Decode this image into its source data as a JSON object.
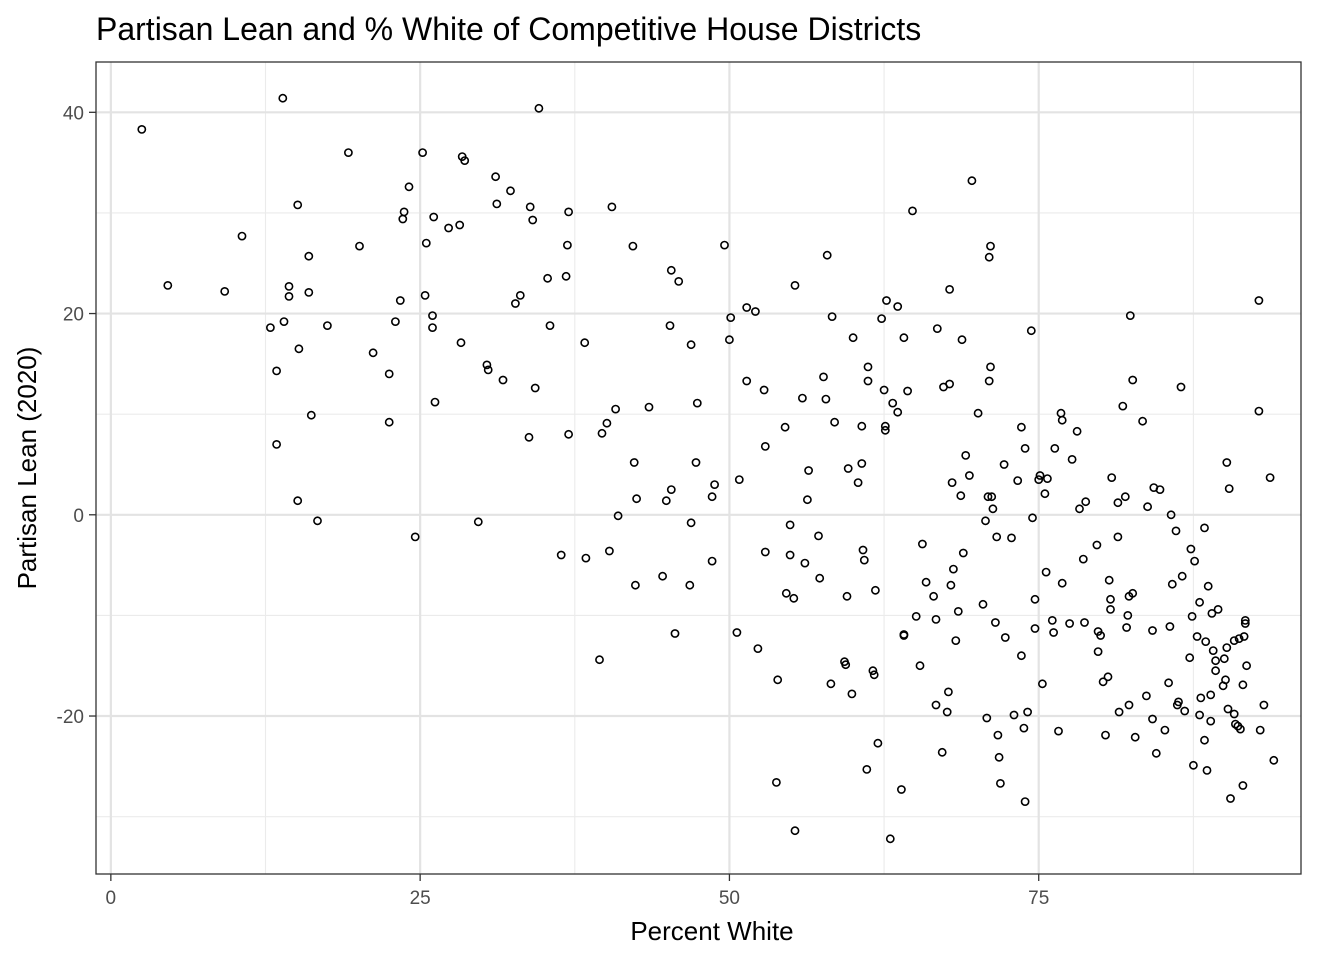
{
  "chart_data": {
    "type": "scatter",
    "title": "Partisan Lean and % White of Competitive House Districts",
    "xlabel": "Percent White",
    "ylabel": "Partisan Lean (2020)",
    "xlim": [
      -1.2,
      96.2
    ],
    "ylim": [
      -35.7,
      45.0
    ],
    "xticks": [
      0,
      25,
      50,
      75
    ],
    "xtick_labels": [
      "0",
      "25",
      "50",
      "75"
    ],
    "yticks": [
      -20,
      0,
      20,
      40
    ],
    "ytick_labels": [
      "-20",
      "0",
      "20",
      "40"
    ],
    "x_minor": [
      12.5,
      37.5,
      62.5,
      87.5
    ],
    "y_minor": [
      -30,
      -10,
      10,
      30
    ],
    "grid": true,
    "theme": "bw",
    "marker_color": "#000000",
    "points": [
      [
        2.5,
        38.3
      ],
      [
        4.6,
        22.8
      ],
      [
        9.2,
        22.2
      ],
      [
        10.6,
        27.7
      ],
      [
        13.9,
        41.4
      ],
      [
        15.1,
        30.8
      ],
      [
        14.4,
        22.7
      ],
      [
        14.4,
        21.7
      ],
      [
        16.0,
        25.7
      ],
      [
        16.0,
        22.1
      ],
      [
        12.9,
        18.6
      ],
      [
        14.0,
        19.2
      ],
      [
        13.4,
        14.3
      ],
      [
        15.2,
        16.5
      ],
      [
        13.4,
        7.0
      ],
      [
        16.2,
        9.9
      ],
      [
        15.1,
        1.4
      ],
      [
        16.7,
        -0.6
      ],
      [
        17.5,
        18.8
      ],
      [
        19.2,
        36.0
      ],
      [
        20.1,
        26.7
      ],
      [
        21.2,
        16.1
      ],
      [
        22.5,
        14.0
      ],
      [
        22.5,
        9.2
      ],
      [
        23.0,
        19.2
      ],
      [
        23.4,
        21.3
      ],
      [
        23.6,
        29.4
      ],
      [
        23.7,
        30.1
      ],
      [
        24.1,
        32.6
      ],
      [
        24.6,
        -2.2
      ],
      [
        25.2,
        36.0
      ],
      [
        25.4,
        21.8
      ],
      [
        25.5,
        27.0
      ],
      [
        26.0,
        19.8
      ],
      [
        26.0,
        18.6
      ],
      [
        26.1,
        29.6
      ],
      [
        26.2,
        11.2
      ],
      [
        27.3,
        28.5
      ],
      [
        28.2,
        28.8
      ],
      [
        28.3,
        17.1
      ],
      [
        28.4,
        35.6
      ],
      [
        28.6,
        35.2
      ],
      [
        29.7,
        -0.7
      ],
      [
        30.4,
        14.9
      ],
      [
        30.5,
        14.4
      ],
      [
        31.1,
        33.6
      ],
      [
        31.2,
        30.9
      ],
      [
        31.7,
        13.4
      ],
      [
        32.3,
        32.2
      ],
      [
        32.7,
        21.0
      ],
      [
        33.1,
        21.8
      ],
      [
        33.8,
        7.7
      ],
      [
        33.9,
        30.6
      ],
      [
        34.1,
        29.3
      ],
      [
        34.3,
        12.6
      ],
      [
        34.6,
        40.4
      ],
      [
        35.3,
        23.5
      ],
      [
        35.5,
        18.8
      ],
      [
        36.4,
        -4.0
      ],
      [
        36.8,
        23.7
      ],
      [
        36.9,
        26.8
      ],
      [
        37.0,
        8.0
      ],
      [
        37.0,
        30.1
      ],
      [
        38.3,
        17.1
      ],
      [
        38.4,
        -4.3
      ],
      [
        39.5,
        -14.4
      ],
      [
        39.7,
        8.1
      ],
      [
        40.1,
        9.1
      ],
      [
        40.3,
        -3.6
      ],
      [
        40.5,
        30.6
      ],
      [
        40.8,
        10.5
      ],
      [
        41.0,
        -0.1
      ],
      [
        42.2,
        26.7
      ],
      [
        42.3,
        5.2
      ],
      [
        42.5,
        1.6
      ],
      [
        42.4,
        -7.0
      ],
      [
        43.5,
        10.7
      ],
      [
        44.6,
        -6.1
      ],
      [
        44.9,
        1.4
      ],
      [
        45.2,
        18.8
      ],
      [
        45.3,
        24.3
      ],
      [
        45.3,
        2.5
      ],
      [
        45.6,
        -11.8
      ],
      [
        45.9,
        23.2
      ],
      [
        46.8,
        -7.0
      ],
      [
        46.9,
        16.9
      ],
      [
        46.9,
        -0.8
      ],
      [
        47.3,
        5.2
      ],
      [
        47.4,
        11.1
      ],
      [
        48.6,
        -4.6
      ],
      [
        48.6,
        1.8
      ],
      [
        48.8,
        3.0
      ],
      [
        49.6,
        26.8
      ],
      [
        50.0,
        17.4
      ],
      [
        50.1,
        19.6
      ],
      [
        50.6,
        -11.7
      ],
      [
        50.8,
        3.5
      ],
      [
        51.4,
        20.6
      ],
      [
        51.4,
        13.3
      ],
      [
        52.1,
        20.2
      ],
      [
        52.3,
        -13.3
      ],
      [
        52.8,
        12.4
      ],
      [
        52.9,
        6.8
      ],
      [
        52.9,
        -3.7
      ],
      [
        53.8,
        -26.6
      ],
      [
        53.9,
        -16.4
      ],
      [
        54.5,
        8.7
      ],
      [
        54.6,
        -7.8
      ],
      [
        54.9,
        -1.0
      ],
      [
        54.9,
        -4.0
      ],
      [
        55.2,
        -8.3
      ],
      [
        55.3,
        22.8
      ],
      [
        55.3,
        -31.4
      ],
      [
        55.9,
        11.6
      ],
      [
        56.1,
        -4.8
      ],
      [
        56.3,
        1.5
      ],
      [
        56.4,
        4.4
      ],
      [
        57.2,
        -2.1
      ],
      [
        57.3,
        -6.3
      ],
      [
        57.6,
        13.7
      ],
      [
        57.8,
        11.5
      ],
      [
        57.9,
        25.8
      ],
      [
        58.2,
        -16.8
      ],
      [
        58.3,
        19.7
      ],
      [
        58.5,
        9.2
      ],
      [
        59.3,
        -14.6
      ],
      [
        59.4,
        -14.9
      ],
      [
        59.5,
        -8.1
      ],
      [
        59.6,
        4.6
      ],
      [
        59.9,
        -17.8
      ],
      [
        60.0,
        17.6
      ],
      [
        60.4,
        3.2
      ],
      [
        60.7,
        8.8
      ],
      [
        60.7,
        5.1
      ],
      [
        60.8,
        -3.5
      ],
      [
        60.9,
        -4.5
      ],
      [
        61.1,
        -25.3
      ],
      [
        61.2,
        14.7
      ],
      [
        61.2,
        13.3
      ],
      [
        61.6,
        -15.5
      ],
      [
        61.7,
        -15.9
      ],
      [
        61.8,
        -7.5
      ],
      [
        62.0,
        -22.7
      ],
      [
        62.3,
        19.5
      ],
      [
        62.5,
        12.4
      ],
      [
        62.6,
        8.8
      ],
      [
        62.6,
        8.4
      ],
      [
        62.7,
        21.3
      ],
      [
        63.0,
        -32.2
      ],
      [
        63.2,
        11.1
      ],
      [
        63.6,
        20.7
      ],
      [
        63.6,
        10.2
      ],
      [
        63.9,
        -27.3
      ],
      [
        64.1,
        -11.9
      ],
      [
        64.1,
        -12.0
      ],
      [
        64.1,
        17.6
      ],
      [
        64.4,
        12.3
      ],
      [
        64.8,
        30.2
      ],
      [
        65.1,
        -10.1
      ],
      [
        65.4,
        -15.0
      ],
      [
        65.6,
        -2.9
      ],
      [
        65.9,
        -6.7
      ],
      [
        66.5,
        -8.1
      ],
      [
        66.7,
        -10.4
      ],
      [
        66.7,
        -18.9
      ],
      [
        66.8,
        18.5
      ],
      [
        67.2,
        -23.6
      ],
      [
        67.3,
        12.7
      ],
      [
        67.6,
        -19.6
      ],
      [
        67.7,
        -17.6
      ],
      [
        67.8,
        13.0
      ],
      [
        67.8,
        22.4
      ],
      [
        67.9,
        -7.0
      ],
      [
        68.0,
        3.2
      ],
      [
        68.1,
        -5.4
      ],
      [
        68.3,
        -12.5
      ],
      [
        68.5,
        -9.6
      ],
      [
        68.7,
        1.9
      ],
      [
        68.8,
        17.4
      ],
      [
        68.9,
        -3.8
      ],
      [
        69.1,
        5.9
      ],
      [
        69.4,
        3.9
      ],
      [
        69.6,
        33.2
      ],
      [
        70.1,
        10.1
      ],
      [
        70.5,
        -8.9
      ],
      [
        70.7,
        -0.6
      ],
      [
        70.8,
        -20.2
      ],
      [
        70.9,
        1.8
      ],
      [
        71.0,
        13.3
      ],
      [
        71.0,
        25.6
      ],
      [
        71.1,
        14.7
      ],
      [
        71.1,
        26.7
      ],
      [
        71.2,
        1.8
      ],
      [
        71.3,
        0.6
      ],
      [
        71.5,
        -10.7
      ],
      [
        71.6,
        -2.2
      ],
      [
        71.7,
        -21.9
      ],
      [
        71.8,
        -24.1
      ],
      [
        71.9,
        -26.7
      ],
      [
        72.2,
        5.0
      ],
      [
        72.3,
        -12.2
      ],
      [
        72.8,
        -2.3
      ],
      [
        73.0,
        -19.9
      ],
      [
        73.3,
        3.4
      ],
      [
        73.6,
        8.7
      ],
      [
        73.6,
        -14.0
      ],
      [
        73.8,
        -21.2
      ],
      [
        73.9,
        -28.5
      ],
      [
        73.9,
        6.6
      ],
      [
        74.1,
        -19.6
      ],
      [
        74.4,
        18.3
      ],
      [
        74.5,
        -0.3
      ],
      [
        74.7,
        -11.3
      ],
      [
        74.7,
        -8.4
      ],
      [
        75.0,
        3.5
      ],
      [
        75.1,
        3.9
      ],
      [
        75.3,
        -16.8
      ],
      [
        75.5,
        2.1
      ],
      [
        75.6,
        -5.7
      ],
      [
        75.7,
        3.6
      ],
      [
        76.1,
        -10.5
      ],
      [
        76.2,
        -11.7
      ],
      [
        76.3,
        6.6
      ],
      [
        76.8,
        10.1
      ],
      [
        76.9,
        9.4
      ],
      [
        76.6,
        -21.5
      ],
      [
        76.9,
        -6.8
      ],
      [
        77.5,
        -10.8
      ],
      [
        77.7,
        5.5
      ],
      [
        78.1,
        8.3
      ],
      [
        78.3,
        0.6
      ],
      [
        78.6,
        -4.4
      ],
      [
        78.7,
        -10.7
      ],
      [
        78.8,
        1.3
      ],
      [
        79.7,
        -3.0
      ],
      [
        79.8,
        -11.6
      ],
      [
        79.8,
        -13.6
      ],
      [
        80.0,
        -12.0
      ],
      [
        80.2,
        -16.6
      ],
      [
        80.4,
        -21.9
      ],
      [
        80.6,
        -16.1
      ],
      [
        80.7,
        -6.5
      ],
      [
        80.8,
        -8.4
      ],
      [
        80.8,
        -9.4
      ],
      [
        80.9,
        3.7
      ],
      [
        81.4,
        -2.2
      ],
      [
        81.4,
        1.2
      ],
      [
        81.5,
        -19.6
      ],
      [
        81.8,
        10.8
      ],
      [
        82.0,
        1.8
      ],
      [
        82.1,
        -11.2
      ],
      [
        82.2,
        -10.0
      ],
      [
        82.3,
        -18.9
      ],
      [
        82.3,
        -8.1
      ],
      [
        82.4,
        19.8
      ],
      [
        82.6,
        -7.8
      ],
      [
        82.6,
        13.4
      ],
      [
        82.8,
        -22.1
      ],
      [
        83.4,
        9.3
      ],
      [
        83.7,
        -18.0
      ],
      [
        83.8,
        0.8
      ],
      [
        84.2,
        -11.5
      ],
      [
        84.2,
        -20.3
      ],
      [
        84.3,
        2.7
      ],
      [
        84.5,
        -23.7
      ],
      [
        84.8,
        2.5
      ],
      [
        85.2,
        -21.4
      ],
      [
        85.5,
        -16.7
      ],
      [
        85.6,
        -11.1
      ],
      [
        85.7,
        0.0
      ],
      [
        85.8,
        -6.9
      ],
      [
        86.1,
        -1.6
      ],
      [
        86.2,
        -18.9
      ],
      [
        86.3,
        -18.6
      ],
      [
        86.5,
        12.7
      ],
      [
        86.6,
        -6.1
      ],
      [
        86.8,
        -19.5
      ],
      [
        87.2,
        -14.2
      ],
      [
        87.3,
        -3.4
      ],
      [
        87.4,
        -10.1
      ],
      [
        87.5,
        -24.9
      ],
      [
        87.6,
        -4.6
      ],
      [
        87.8,
        -12.1
      ],
      [
        88.0,
        -8.7
      ],
      [
        88.0,
        -19.9
      ],
      [
        88.1,
        -18.2
      ],
      [
        88.4,
        -1.3
      ],
      [
        88.4,
        -22.4
      ],
      [
        88.5,
        -12.6
      ],
      [
        88.6,
        -25.4
      ],
      [
        88.7,
        -7.1
      ],
      [
        88.9,
        -17.9
      ],
      [
        88.9,
        -20.5
      ],
      [
        89.0,
        -9.8
      ],
      [
        89.1,
        -13.5
      ],
      [
        89.3,
        -14.5
      ],
      [
        89.3,
        -15.5
      ],
      [
        89.5,
        -9.4
      ],
      [
        89.9,
        -17.0
      ],
      [
        90.0,
        -14.3
      ],
      [
        90.1,
        -16.4
      ],
      [
        90.2,
        -13.2
      ],
      [
        90.2,
        5.2
      ],
      [
        90.3,
        -19.3
      ],
      [
        90.4,
        2.6
      ],
      [
        90.5,
        -28.2
      ],
      [
        90.8,
        -19.8
      ],
      [
        90.8,
        -12.5
      ],
      [
        90.9,
        -20.8
      ],
      [
        91.1,
        -21.0
      ],
      [
        91.2,
        -12.3
      ],
      [
        91.3,
        -21.3
      ],
      [
        91.5,
        -26.9
      ],
      [
        91.5,
        -16.9
      ],
      [
        91.6,
        -12.1
      ],
      [
        91.7,
        -10.5
      ],
      [
        91.7,
        -10.8
      ],
      [
        91.8,
        -15.0
      ],
      [
        92.8,
        21.3
      ],
      [
        92.8,
        10.3
      ],
      [
        92.9,
        -21.4
      ],
      [
        93.2,
        -18.9
      ],
      [
        93.7,
        3.7
      ],
      [
        94.0,
        -24.4
      ]
    ]
  }
}
